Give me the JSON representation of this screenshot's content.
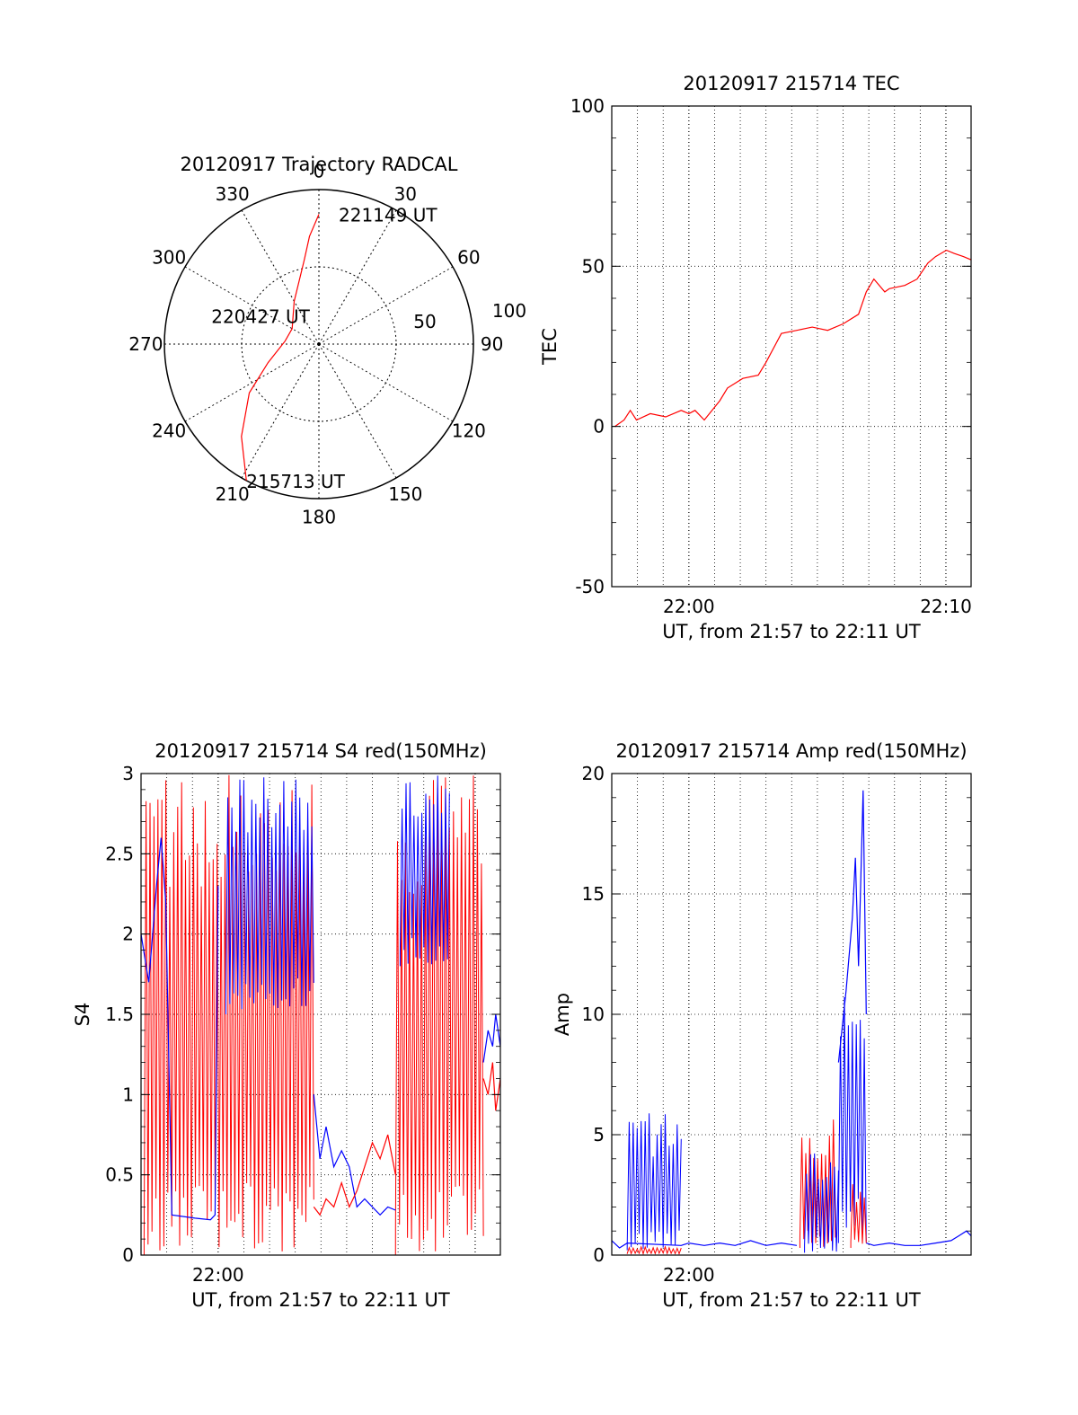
{
  "colors": {
    "red": "#ff0000",
    "blue": "#0000ff",
    "axis": "#000000"
  },
  "chart_data": [
    {
      "id": "polar",
      "type": "polar",
      "title": "20120917 Trajectory RADCAL",
      "r_ticks": [
        50,
        100
      ],
      "angle_labels": [
        "0",
        "30",
        "60",
        "90",
        "120",
        "150",
        "180",
        "210",
        "240",
        "270",
        "300",
        "330"
      ],
      "series": [
        {
          "color": "red",
          "points": [
            [
              208,
              100
            ],
            [
              220,
              78
            ],
            [
              235,
              55
            ],
            [
              250,
              35
            ],
            [
              275,
              22
            ],
            [
              300,
              20
            ],
            [
              330,
              32
            ],
            [
              350,
              55
            ],
            [
              355,
              70
            ],
            [
              360,
              84
            ]
          ]
        }
      ],
      "annotations": [
        {
          "text": "221149 UT",
          "angle": 360,
          "r": 84
        },
        {
          "text": "220427 UT",
          "angle": 275,
          "r": 22
        },
        {
          "text": "215713 UT",
          "angle": 208,
          "r": 100
        }
      ]
    },
    {
      "id": "tec",
      "type": "line",
      "title": "20120917 215714 TEC",
      "ylabel": "TEC",
      "xlabel": "UT, from 21:57 to 22:11 UT",
      "xlim": [
        21.95,
        22.183
      ],
      "ylim": [
        -50,
        100
      ],
      "yticks": [
        "-50",
        "0",
        "50",
        "100"
      ],
      "xticks": [
        {
          "label": "22:00",
          "value": 22.0
        },
        {
          "label": "22:10",
          "value": 22.1667
        }
      ],
      "series": [
        {
          "color": "red",
          "x": [
            21.952,
            21.958,
            21.962,
            21.966,
            21.975,
            21.985,
            21.995,
            22.0,
            22.004,
            22.01,
            22.02,
            22.025,
            22.035,
            22.045,
            22.05,
            22.06,
            22.07,
            22.08,
            22.09,
            22.1,
            22.11,
            22.115,
            22.12,
            22.127,
            22.13,
            22.14,
            22.148,
            22.155,
            22.16,
            22.167,
            22.172,
            22.178,
            22.183
          ],
          "y": [
            0,
            2,
            5,
            2,
            4,
            3,
            5,
            4,
            5,
            2,
            8,
            12,
            15,
            16,
            20,
            29,
            30,
            31,
            30,
            32,
            35,
            42,
            46,
            42,
            43,
            44,
            46,
            51,
            53,
            55,
            54,
            53,
            52
          ]
        }
      ]
    },
    {
      "id": "s4",
      "type": "line",
      "title": "20120917 215714 S4 red(150MHz)",
      "ylabel": "S4",
      "xlabel": "UT, from 21:57 to 22:11 UT",
      "xlim": [
        21.95,
        22.183
      ],
      "ylim": [
        0,
        3
      ],
      "yticks": [
        "0",
        "0.5",
        "1",
        "1.5",
        "2",
        "2.5",
        "3"
      ],
      "xticks": [
        {
          "label": "22:00",
          "value": 22.0
        }
      ],
      "bands": [
        {
          "color": "red",
          "x0": 21.952,
          "x1": 22.062,
          "top": 3,
          "bottom": 0
        },
        {
          "color": "blue",
          "x0": 22.005,
          "x1": 22.062,
          "top": 3,
          "bottom": 1.5
        },
        {
          "color": "red",
          "x0": 22.115,
          "x1": 22.172,
          "top": 3,
          "bottom": 0
        },
        {
          "color": "blue",
          "x0": 22.118,
          "x1": 22.15,
          "top": 3,
          "bottom": 1.8
        }
      ],
      "series": [
        {
          "color": "blue",
          "x": [
            21.95,
            21.955,
            21.96,
            21.963,
            21.966,
            21.97,
            21.985,
            21.995,
            21.998,
            22.0
          ],
          "y": [
            2.0,
            1.7,
            2.3,
            2.6,
            2.2,
            0.25,
            0.23,
            0.22,
            0.25,
            2.3
          ]
        },
        {
          "color": "blue",
          "x": [
            22.062,
            22.066,
            22.07,
            22.075,
            22.08,
            22.085,
            22.09,
            22.095,
            22.1,
            22.105,
            22.11,
            22.115
          ],
          "y": [
            1.0,
            0.6,
            0.8,
            0.55,
            0.65,
            0.55,
            0.3,
            0.35,
            0.3,
            0.25,
            0.3,
            0.28
          ]
        },
        {
          "color": "red",
          "x": [
            22.062,
            22.066,
            22.07,
            22.075,
            22.08,
            22.085,
            22.09,
            22.095,
            22.1,
            22.105,
            22.11,
            22.115
          ],
          "y": [
            0.3,
            0.25,
            0.35,
            0.3,
            0.45,
            0.3,
            0.4,
            0.55,
            0.7,
            0.6,
            0.75,
            0.5
          ]
        },
        {
          "color": "blue",
          "x": [
            22.172,
            22.175,
            22.178,
            22.18,
            22.183
          ],
          "y": [
            1.2,
            1.4,
            1.3,
            1.5,
            1.3
          ]
        },
        {
          "color": "red",
          "x": [
            22.172,
            22.175,
            22.178,
            22.18,
            22.183
          ],
          "y": [
            1.1,
            1.0,
            1.2,
            0.9,
            1.1
          ]
        }
      ]
    },
    {
      "id": "amp",
      "type": "line",
      "title": "20120917 215714 Amp red(150MHz)",
      "ylabel": "Amp",
      "xlabel": "UT, from 21:57 to 22:11 UT",
      "xlim": [
        21.95,
        22.183
      ],
      "ylim": [
        0,
        20
      ],
      "yticks": [
        "0",
        "5",
        "10",
        "15",
        "20"
      ],
      "xticks": [
        {
          "label": "22:00",
          "value": 22.0
        }
      ],
      "bands": [
        {
          "color": "blue",
          "x0": 21.96,
          "x1": 21.995,
          "top": 6.0,
          "bottom": 0.2
        },
        {
          "color": "red",
          "x0": 21.96,
          "x1": 21.995,
          "top": 0.35,
          "bottom": 0.05
        },
        {
          "color": "red",
          "x0": 22.072,
          "x1": 22.095,
          "top": 6.0,
          "bottom": 0.3
        },
        {
          "color": "blue",
          "x0": 22.075,
          "x1": 22.097,
          "top": 4.5,
          "bottom": 0.1
        },
        {
          "color": "blue",
          "x0": 22.097,
          "x1": 22.115,
          "top": 13.0,
          "bottom": 0.5
        },
        {
          "color": "red",
          "x0": 22.105,
          "x1": 22.115,
          "top": 3.0,
          "bottom": 0.3
        }
      ],
      "series": [
        {
          "color": "blue",
          "x": [
            21.95,
            21.955,
            21.96,
            21.995,
            22.0,
            22.01,
            22.02,
            22.03,
            22.04,
            22.05,
            22.06,
            22.07
          ],
          "y": [
            0.6,
            0.3,
            0.5,
            0.4,
            0.5,
            0.4,
            0.5,
            0.4,
            0.6,
            0.4,
            0.5,
            0.4
          ]
        },
        {
          "color": "blue",
          "x": [
            22.097,
            22.102,
            22.106,
            22.108,
            22.11,
            22.113,
            22.115
          ],
          "y": [
            8,
            11,
            14,
            16.5,
            12,
            19.3,
            10
          ]
        },
        {
          "color": "blue",
          "x": [
            22.115,
            22.12,
            22.13,
            22.14,
            22.15,
            22.16,
            22.17,
            22.175,
            22.18,
            22.183
          ],
          "y": [
            0.5,
            0.4,
            0.5,
            0.4,
            0.4,
            0.5,
            0.6,
            0.8,
            1.0,
            0.8
          ]
        }
      ]
    }
  ]
}
